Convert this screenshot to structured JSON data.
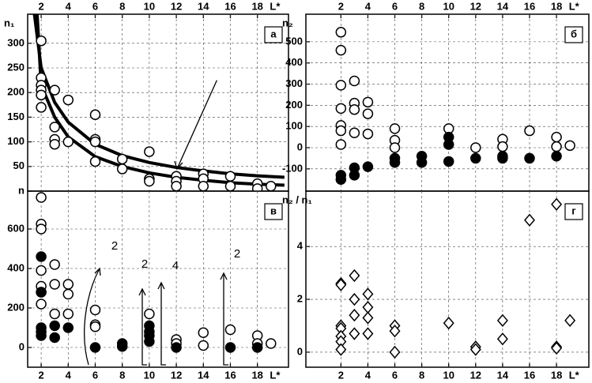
{
  "chart_data": [
    {
      "type": "scatter",
      "label": "а",
      "y_label": "n₁",
      "x_label": "L*",
      "xlim": [
        1,
        20.3
      ],
      "xticks": [
        2,
        4,
        6,
        8,
        10,
        12,
        14,
        16,
        18
      ],
      "ylim": [
        0,
        359
      ],
      "yticks": [
        {
          "value": 0,
          "label": "n"
        },
        50,
        100,
        150,
        200,
        250,
        300
      ],
      "grid": true,
      "series": [
        {
          "type": "line",
          "color": "#000",
          "x": [
            1.5,
            2,
            3,
            4,
            6,
            8,
            10,
            12,
            14,
            16,
            18,
            20
          ],
          "values": [
            359,
            250,
            180,
            140,
            95,
            72,
            58,
            48,
            41,
            35,
            31,
            28
          ]
        },
        {
          "type": "line",
          "color": "#000",
          "x": [
            1.7,
            2,
            3,
            4,
            6,
            8,
            10,
            12,
            14,
            16,
            18,
            20
          ],
          "values": [
            359,
            215,
            150,
            110,
            70,
            50,
            37,
            28,
            22,
            17,
            14,
            12
          ]
        },
        {
          "marker": "circle-open",
          "color": "#000",
          "x": [
            2,
            2,
            2,
            2,
            2,
            2,
            3,
            3,
            3,
            3,
            4,
            4,
            6,
            6,
            6,
            6,
            8,
            8,
            10,
            10,
            10,
            12,
            12,
            12,
            14,
            14,
            14,
            16,
            16,
            18,
            18,
            19
          ],
          "values": [
            305,
            230,
            215,
            205,
            195,
            170,
            205,
            130,
            105,
            95,
            185,
            100,
            155,
            105,
            100,
            60,
            65,
            45,
            80,
            25,
            20,
            30,
            20,
            10,
            35,
            25,
            10,
            30,
            10,
            15,
            5,
            10
          ]
        }
      ]
    },
    {
      "type": "scatter",
      "label": "в",
      "x_label": "L*",
      "annotations": [
        "2",
        "2",
        "4",
        "2"
      ],
      "xlim": [
        1,
        20.3
      ],
      "xticks": [
        2,
        4,
        6,
        8,
        10,
        12,
        14,
        16,
        18
      ],
      "ylim": [
        -100,
        792
      ],
      "yticks": [
        0,
        200,
        400,
        600
      ],
      "grid": true,
      "series": [
        {
          "marker": "circle-open",
          "color": "#000",
          "x": [
            2,
            2,
            2,
            2,
            2,
            2,
            2,
            3,
            3,
            3,
            4,
            4,
            4,
            6,
            6,
            6,
            10,
            12,
            12,
            14,
            14,
            16,
            18,
            18,
            19
          ],
          "values": [
            760,
            625,
            600,
            390,
            310,
            280,
            220,
            420,
            320,
            170,
            320,
            270,
            170,
            190,
            115,
            105,
            170,
            40,
            20,
            75,
            10,
            90,
            60,
            20,
            20
          ]
        },
        {
          "marker": "circle-filled",
          "color": "#000",
          "x": [
            2,
            2,
            2,
            2,
            2,
            3,
            3,
            4,
            6,
            8,
            8,
            10,
            10,
            10,
            10,
            12,
            16,
            18
          ],
          "values": [
            460,
            280,
            100,
            80,
            60,
            110,
            50,
            100,
            0,
            20,
            5,
            110,
            80,
            60,
            30,
            0,
            0,
            0
          ]
        }
      ]
    },
    {
      "type": "scatter",
      "label": "б",
      "y_label": "n₂",
      "xlim": [
        -0.6,
        20.4
      ],
      "xticks": [
        2,
        4,
        6,
        8,
        10,
        12,
        14,
        16,
        18
      ],
      "x_label": "L*",
      "ylim": [
        -205,
        630
      ],
      "yticks": [
        -100,
        0,
        100,
        200,
        300,
        400,
        500
      ],
      "grid": true,
      "series": [
        {
          "marker": "circle-open",
          "color": "#000",
          "x": [
            2,
            2,
            2,
            2,
            2,
            2,
            2,
            3,
            3,
            3,
            3,
            4,
            4,
            4,
            6,
            6,
            6,
            10,
            12,
            14,
            14,
            16,
            18,
            18,
            19
          ],
          "values": [
            545,
            460,
            295,
            185,
            105,
            80,
            15,
            315,
            210,
            180,
            70,
            215,
            160,
            65,
            90,
            35,
            0,
            90,
            0,
            40,
            5,
            80,
            50,
            5,
            10
          ]
        },
        {
          "marker": "circle-filled",
          "color": "#000",
          "x": [
            2,
            2,
            3,
            3,
            4,
            6,
            6,
            8,
            8,
            10,
            10,
            10,
            12,
            14,
            14,
            16,
            18
          ],
          "values": [
            -130,
            -150,
            -95,
            -130,
            -90,
            -50,
            -70,
            -40,
            -70,
            50,
            15,
            -65,
            -50,
            -40,
            -50,
            -50,
            -40
          ]
        }
      ]
    },
    {
      "type": "scatter",
      "label": "г",
      "y_label": "n₂ / n₁",
      "x_label": "L*",
      "xlim": [
        -0.6,
        20.4
      ],
      "xticks": [
        2,
        4,
        6,
        8,
        10,
        12,
        14,
        16,
        18
      ],
      "ylim": [
        -0.57,
        6.1
      ],
      "yticks": [
        0,
        2,
        4
      ],
      "grid": true,
      "series": [
        {
          "marker": "diamond-open",
          "color": "#000",
          "x": [
            2,
            2,
            2,
            2,
            2,
            2,
            2,
            3,
            3,
            3,
            3,
            4,
            4,
            4,
            4,
            6,
            6,
            6,
            10,
            12,
            12,
            14,
            14,
            16,
            18,
            18,
            18,
            19
          ],
          "values": [
            2.6,
            2.55,
            1.0,
            0.9,
            0.6,
            0.4,
            0.1,
            2.9,
            2.0,
            1.4,
            0.7,
            2.2,
            1.7,
            1.3,
            0.7,
            1.0,
            0.8,
            0,
            1.1,
            0.2,
            0.1,
            1.2,
            0.5,
            5.0,
            5.6,
            0.2,
            0.15,
            1.2
          ]
        }
      ]
    }
  ]
}
